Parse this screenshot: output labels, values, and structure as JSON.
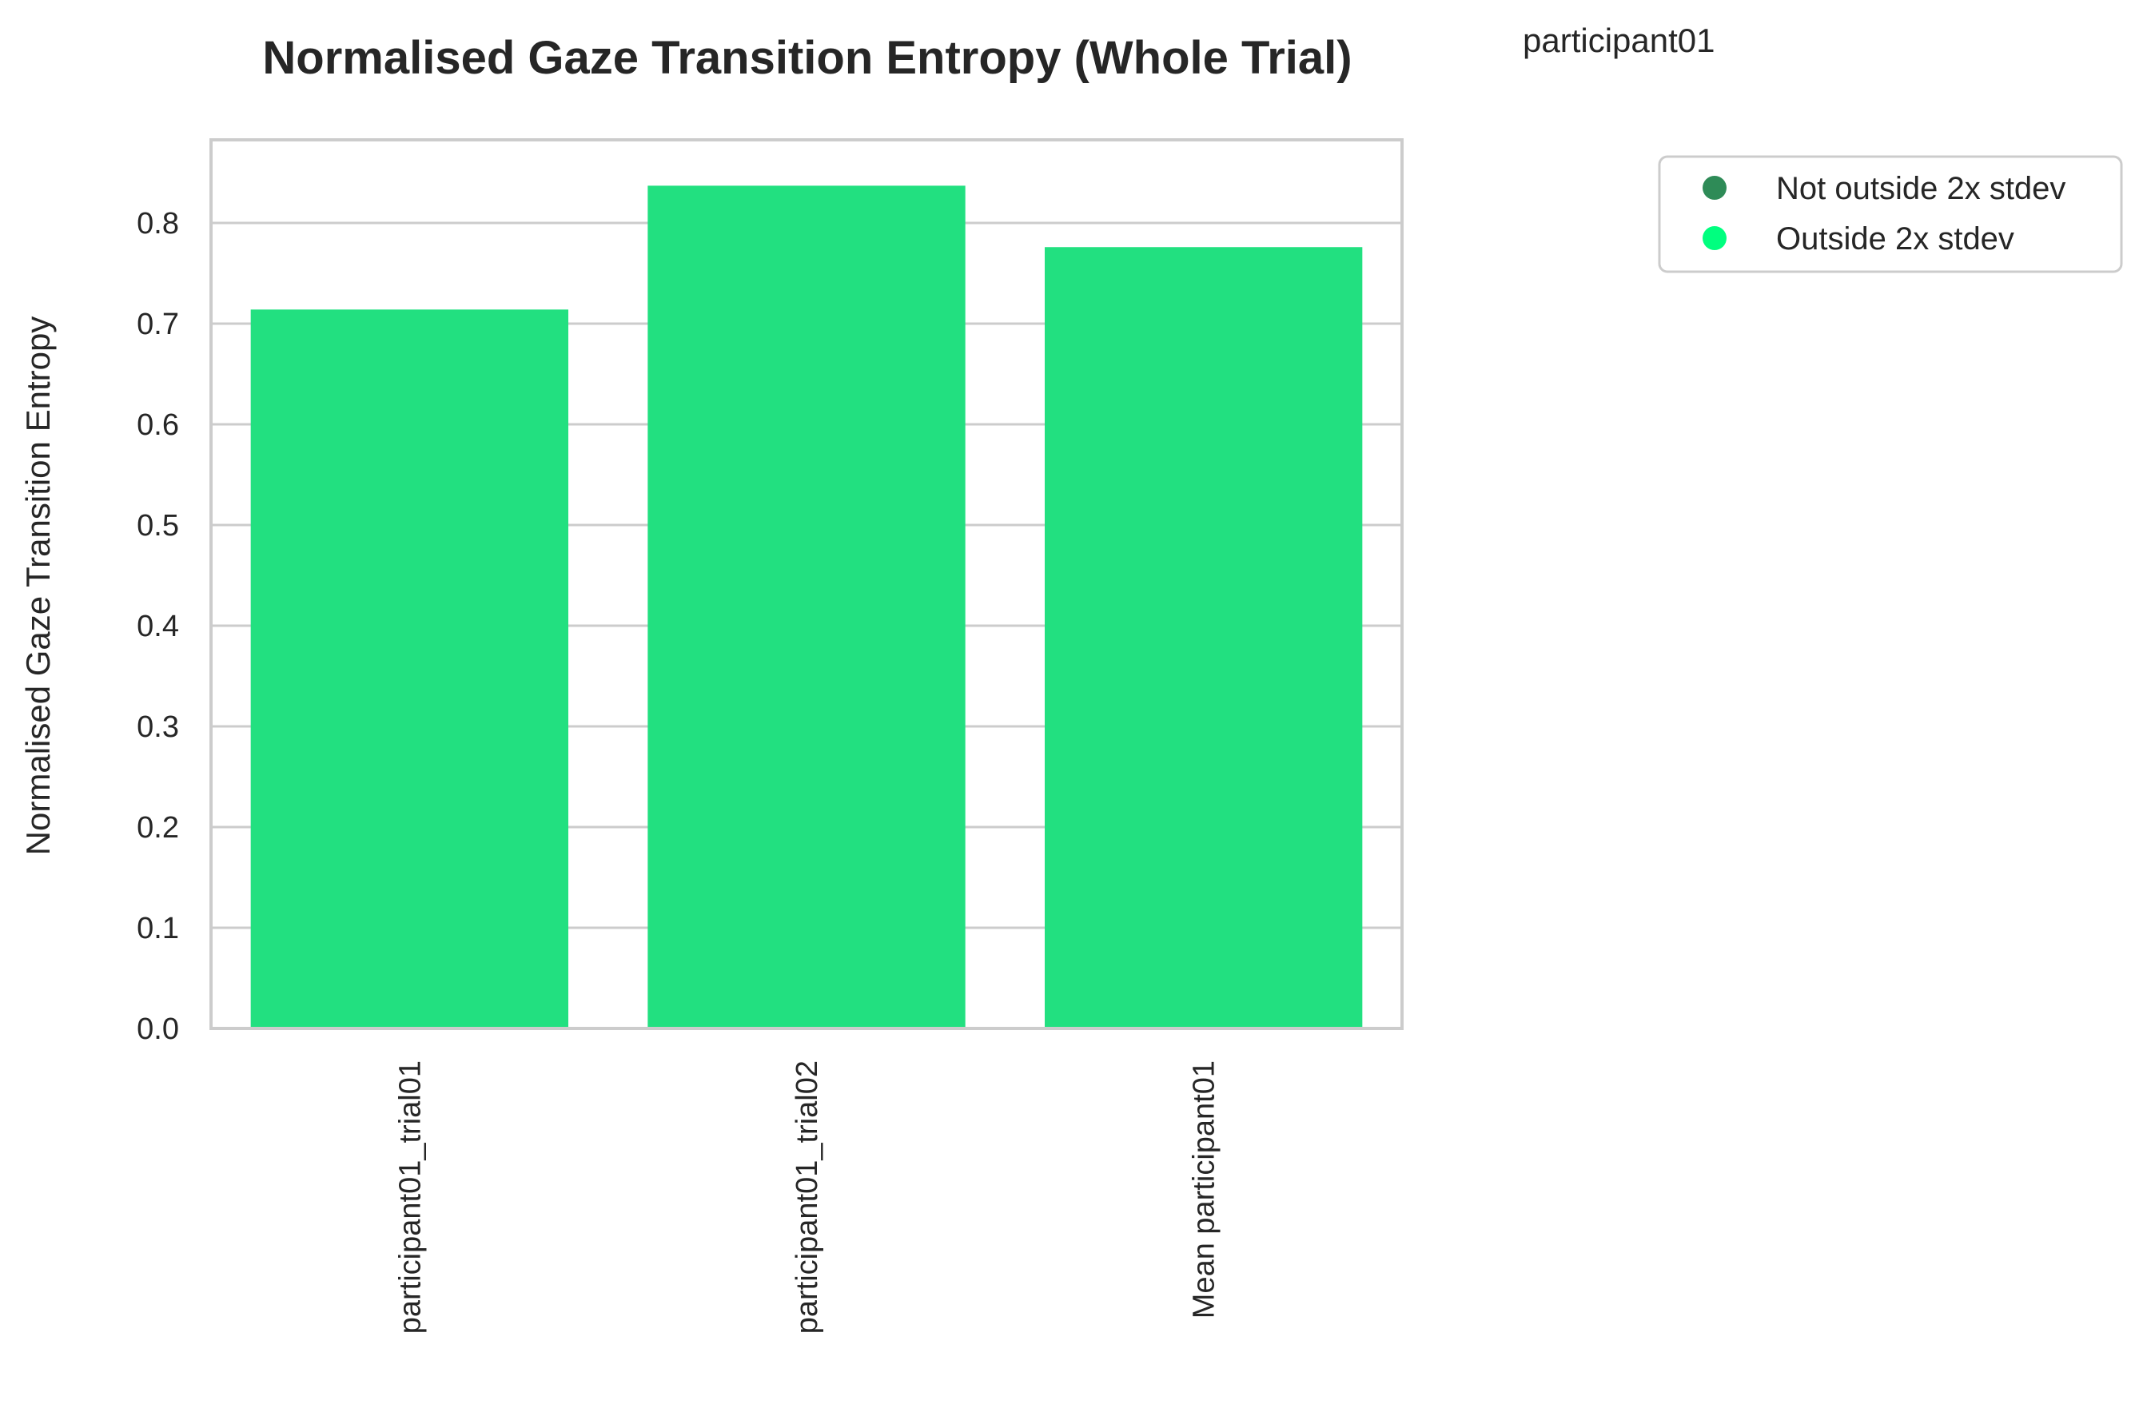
{
  "chart_data": {
    "type": "bar",
    "title": "Normalised Gaze Transition Entropy (Whole Trial)",
    "subtitle": "participant01",
    "xlabel": "",
    "ylabel": "Normalised Gaze Transition Entropy",
    "categories": [
      "participant01_trial01",
      "participant01_trial02",
      "Mean participant01"
    ],
    "values": [
      0.714,
      0.837,
      0.776
    ],
    "ylim": [
      0,
      0.88
    ],
    "yticks": [
      "0.0",
      "0.1",
      "0.2",
      "0.3",
      "0.4",
      "0.5",
      "0.6",
      "0.7",
      "0.8"
    ],
    "bar_color": "#22e080",
    "grid": true,
    "legend": {
      "placement": "upper right, outside plot",
      "entries": [
        {
          "label": "Not outside 2x stdev",
          "color": "#2e8b57"
        },
        {
          "label": "Outside 2x stdev",
          "color": "#00ff7f"
        }
      ]
    }
  }
}
